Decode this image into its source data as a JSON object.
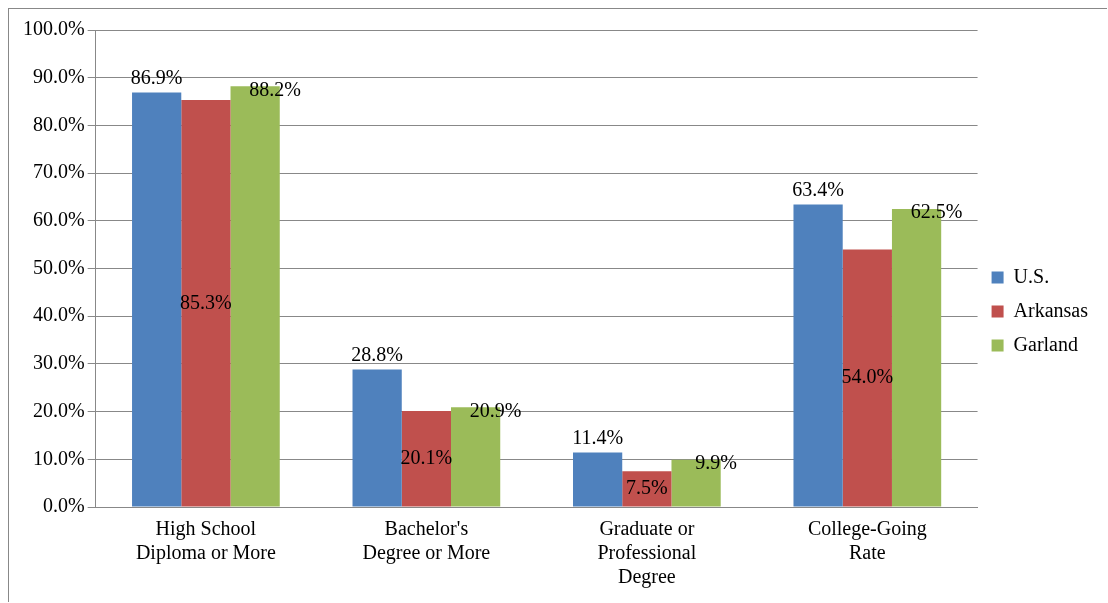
{
  "chart_data": {
    "type": "bar",
    "categories": [
      "High School Diploma or More",
      "Bachelor's Degree or More",
      "Graduate or Professional Degree",
      "College-Going Rate"
    ],
    "series": [
      {
        "name": "U.S.",
        "color": "#4f81bd",
        "values": [
          86.9,
          28.8,
          11.4,
          63.4
        ],
        "value_labels": [
          "86.9%",
          "28.8%",
          "11.4%",
          "63.4%"
        ]
      },
      {
        "name": "Arkansas",
        "color": "#c0504d",
        "values": [
          85.3,
          20.1,
          7.5,
          54.0
        ],
        "value_labels": [
          "85.3%",
          "20.1%",
          "7.5%",
          "54.0%"
        ]
      },
      {
        "name": "Garland",
        "color": "#9bbb59",
        "values": [
          88.2,
          20.9,
          9.9,
          62.5
        ],
        "value_labels": [
          "88.2%",
          "20.9%",
          "9.9%",
          "62.5%"
        ]
      }
    ],
    "ylim": [
      0,
      100
    ],
    "yticks": [
      {
        "value": 0,
        "label": "0.0%"
      },
      {
        "value": 10,
        "label": "10.0%"
      },
      {
        "value": 20,
        "label": "20.0%"
      },
      {
        "value": 30,
        "label": "30.0%"
      },
      {
        "value": 40,
        "label": "40.0%"
      },
      {
        "value": 50,
        "label": "50.0%"
      },
      {
        "value": 60,
        "label": "60.0%"
      },
      {
        "value": 70,
        "label": "70.0%"
      },
      {
        "value": 80,
        "label": "80.0%"
      },
      {
        "value": 90,
        "label": "90.0%"
      },
      {
        "value": 100,
        "label": "100.0%"
      }
    ],
    "grid": "y",
    "legend": "right"
  }
}
